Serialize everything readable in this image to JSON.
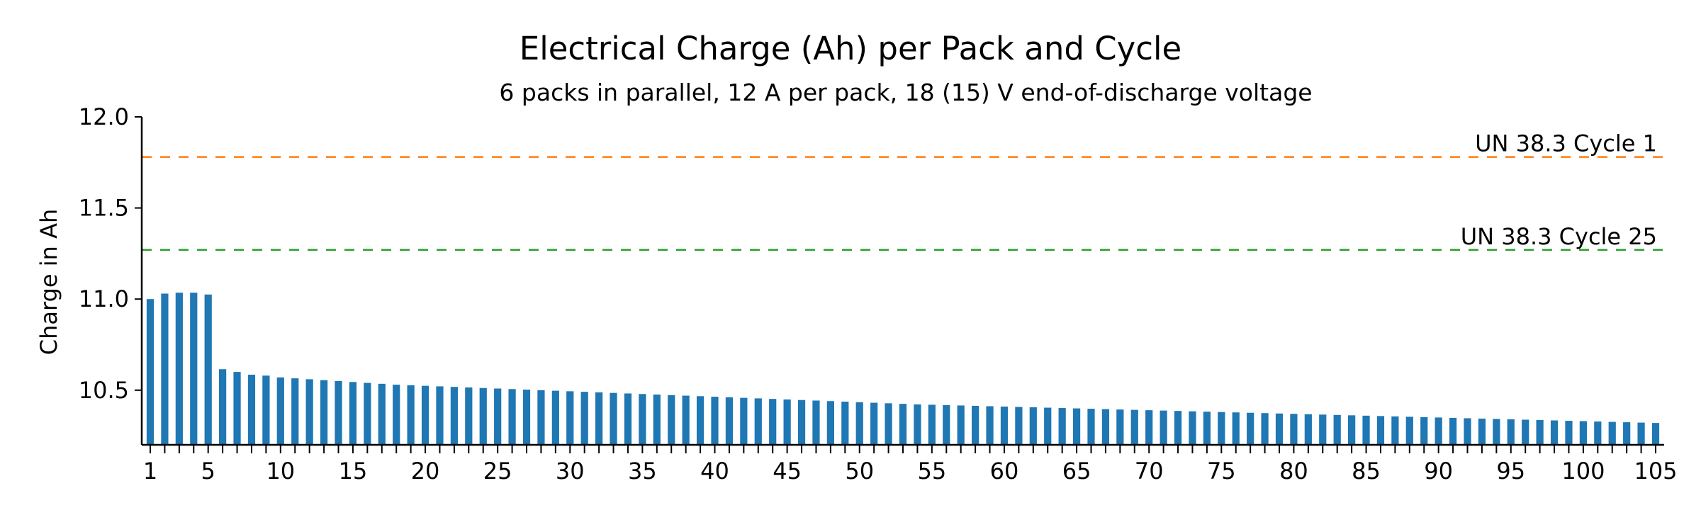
{
  "chart_data": {
    "type": "bar",
    "title": "Electrical Charge (Ah) per Pack and Cycle",
    "subtitle": "6 packs in parallel, 12 A per pack, 18 (15) V end-of-discharge voltage",
    "xlabel": "",
    "ylabel": "Charge in Ah",
    "ylim": [
      10.2,
      12.0
    ],
    "xlim": [
      1,
      105
    ],
    "yticks": [
      10.5,
      11.0,
      11.5,
      12.0
    ],
    "ytick_labels": [
      "10.5",
      "11.0",
      "11.5",
      "12.0"
    ],
    "xticks": [
      1,
      5,
      10,
      15,
      20,
      25,
      30,
      35,
      40,
      45,
      50,
      55,
      60,
      65,
      70,
      75,
      80,
      85,
      90,
      95,
      100,
      105
    ],
    "xtick_labels": [
      "1",
      "5",
      "10",
      "15",
      "20",
      "25",
      "30",
      "35",
      "40",
      "45",
      "50",
      "55",
      "60",
      "65",
      "70",
      "75",
      "80",
      "85",
      "90",
      "95",
      "100",
      "105"
    ],
    "grid": false,
    "bar_color": "#1f77b4",
    "x": [
      1,
      2,
      3,
      4,
      5,
      6,
      7,
      8,
      9,
      10,
      11,
      12,
      13,
      14,
      15,
      16,
      17,
      18,
      19,
      20,
      21,
      22,
      23,
      24,
      25,
      26,
      27,
      28,
      29,
      30,
      31,
      32,
      33,
      34,
      35,
      36,
      37,
      38,
      39,
      40,
      41,
      42,
      43,
      44,
      45,
      46,
      47,
      48,
      49,
      50,
      51,
      52,
      53,
      54,
      55,
      56,
      57,
      58,
      59,
      60,
      61,
      62,
      63,
      64,
      65,
      66,
      67,
      68,
      69,
      70,
      71,
      72,
      73,
      74,
      75,
      76,
      77,
      78,
      79,
      80,
      81,
      82,
      83,
      84,
      85,
      86,
      87,
      88,
      89,
      90,
      91,
      92,
      93,
      94,
      95,
      96,
      97,
      98,
      99,
      100,
      101,
      102,
      103,
      104,
      105
    ],
    "values": [
      11.0,
      11.03,
      11.035,
      11.035,
      11.025,
      10.615,
      10.6,
      10.585,
      10.58,
      10.57,
      10.565,
      10.56,
      10.555,
      10.55,
      10.545,
      10.54,
      10.535,
      10.53,
      10.527,
      10.524,
      10.521,
      10.518,
      10.515,
      10.512,
      10.509,
      10.506,
      10.503,
      10.5,
      10.497,
      10.494,
      10.491,
      10.488,
      10.485,
      10.482,
      10.479,
      10.476,
      10.473,
      10.47,
      10.467,
      10.464,
      10.461,
      10.458,
      10.455,
      10.452,
      10.449,
      10.446,
      10.443,
      10.44,
      10.437,
      10.434,
      10.431,
      10.428,
      10.425,
      10.422,
      10.42,
      10.418,
      10.416,
      10.414,
      10.412,
      10.41,
      10.408,
      10.406,
      10.404,
      10.402,
      10.4,
      10.398,
      10.396,
      10.394,
      10.392,
      10.39,
      10.388,
      10.386,
      10.384,
      10.382,
      10.38,
      10.378,
      10.376,
      10.374,
      10.372,
      10.37,
      10.368,
      10.366,
      10.364,
      10.362,
      10.36,
      10.358,
      10.356,
      10.354,
      10.352,
      10.35,
      10.348,
      10.346,
      10.344,
      10.342,
      10.34,
      10.338,
      10.336,
      10.334,
      10.332,
      10.33,
      10.328,
      10.326,
      10.324,
      10.322,
      10.32
    ],
    "reference_lines": [
      {
        "label": "UN 38.3 Cycle 1",
        "value": 11.78,
        "color": "#ff7f0e",
        "style": "dashed"
      },
      {
        "label": "UN 38.3 Cycle 25",
        "value": 11.27,
        "color": "#2ca02c",
        "style": "dashed"
      }
    ]
  }
}
